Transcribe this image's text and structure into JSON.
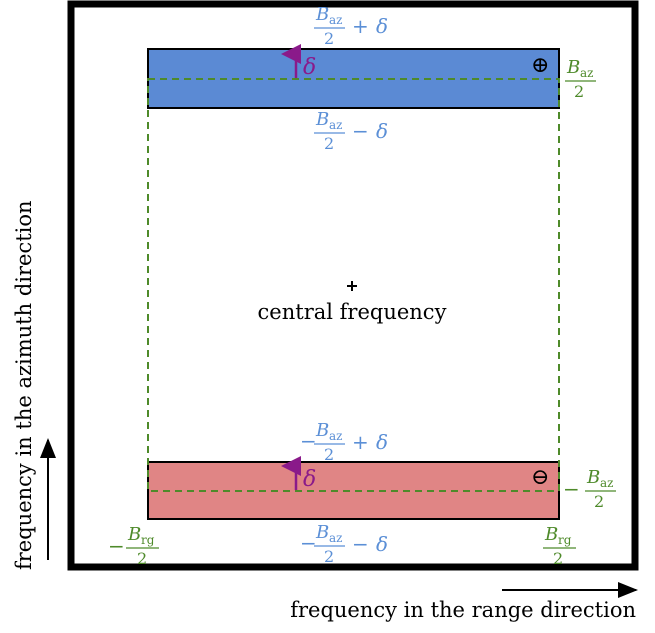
{
  "labels": {
    "top_upper": "B_az/2 + δ",
    "top_lower": "B_az/2 − δ",
    "bottom_upper": "−B_az/2 + δ",
    "bottom_lower": "−B_az/2 − δ",
    "delta": "δ",
    "plus_symbol": "⊕",
    "minus_symbol": "⊖",
    "center_label": "central frequency",
    "azimuth_axis": "frequency in the azimuth direction",
    "range_axis": "frequency in the range direction"
  },
  "math": {
    "B": "B",
    "az": "az",
    "rg": "rg",
    "two": "2",
    "plus": "+",
    "minus": "−",
    "delta": "δ"
  },
  "colors": {
    "top_band_fill": "#5b8ad4",
    "bottom_band_fill": "#e08585",
    "dashed": "#4e8a2a",
    "label_blue": "#5b8fd6",
    "label_green": "#4e8a2a",
    "arrow_purple": "#8a1a8a",
    "frame": "#000000"
  }
}
